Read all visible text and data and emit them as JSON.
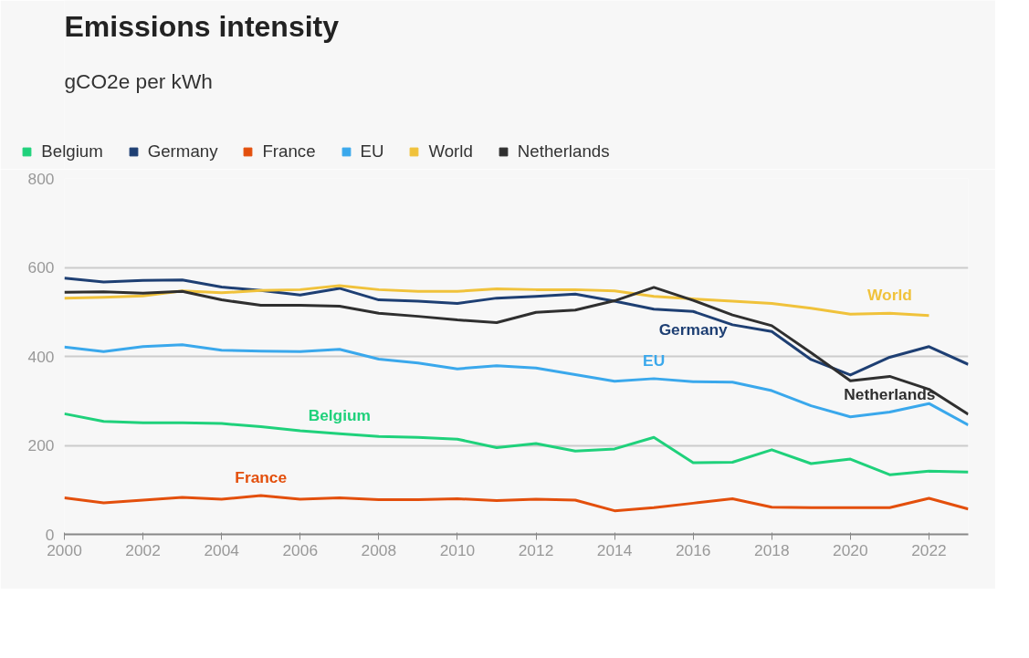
{
  "chart_data": {
    "type": "line",
    "title": "Emissions intensity",
    "subtitle": "gCO2e per kWh",
    "x": [
      2000,
      2001,
      2002,
      2003,
      2004,
      2005,
      2006,
      2007,
      2008,
      2009,
      2010,
      2011,
      2012,
      2013,
      2014,
      2015,
      2016,
      2017,
      2018,
      2019,
      2020,
      2021,
      2022,
      2023
    ],
    "series": [
      {
        "name": "Belgium",
        "color": "#1fd17b",
        "values": [
          271,
          254,
          251,
          251,
          249,
          242,
          233,
          226,
          220,
          218,
          214,
          195,
          204,
          187,
          192,
          218,
          161,
          162,
          190,
          159,
          169,
          134,
          142,
          140
        ]
      },
      {
        "name": "Germany",
        "color": "#1e3f73",
        "values": [
          576,
          567,
          571,
          572,
          556,
          548,
          538,
          553,
          527,
          524,
          519,
          531,
          535,
          540,
          524,
          506,
          501,
          471,
          456,
          393,
          358,
          398,
          422,
          382
        ]
      },
      {
        "name": "France",
        "color": "#e34f0c",
        "values": [
          82,
          71,
          77,
          83,
          79,
          87,
          79,
          82,
          78,
          78,
          80,
          76,
          79,
          77,
          53,
          60,
          70,
          80,
          61,
          60,
          60,
          60,
          81,
          57
        ]
      },
      {
        "name": "EU",
        "color": "#3aa8ec",
        "values": [
          421,
          411,
          422,
          426,
          414,
          412,
          411,
          416,
          394,
          385,
          372,
          379,
          374,
          359,
          344,
          350,
          343,
          342,
          323,
          289,
          264,
          275,
          294,
          246
        ]
      },
      {
        "name": "World",
        "color": "#f0c23b",
        "values": [
          531,
          533,
          536,
          547,
          543,
          548,
          550,
          559,
          550,
          546,
          546,
          552,
          550,
          550,
          547,
          535,
          529,
          524,
          519,
          508,
          495,
          497,
          492,
          null
        ]
      },
      {
        "name": "Netherlands",
        "color": "#2f2f2f",
        "values": [
          544,
          545,
          542,
          546,
          527,
          515,
          515,
          513,
          497,
          490,
          482,
          476,
          499,
          504,
          525,
          555,
          526,
          493,
          469,
          408,
          345,
          355,
          326,
          270
        ]
      }
    ],
    "annotations": [
      {
        "text": "Belgium",
        "x": 2007,
        "y": 226
      },
      {
        "text": "Germany",
        "x": 2016,
        "y": 501
      },
      {
        "text": "France",
        "x": 2005,
        "y": 87
      },
      {
        "text": "EU",
        "x": 2015,
        "y": 350
      },
      {
        "text": "World",
        "x": 2021,
        "y": 497
      },
      {
        "text": "Netherlands",
        "x": 2021,
        "y": 355
      }
    ],
    "xlim": [
      2000,
      2023
    ],
    "xticks": [
      2000,
      2002,
      2004,
      2006,
      2008,
      2010,
      2012,
      2014,
      2016,
      2018,
      2020,
      2022
    ],
    "ylim": [
      0,
      800
    ],
    "yticks": [
      0,
      200,
      400,
      600,
      800
    ],
    "grid": "y",
    "legend": "top left",
    "marker": "none",
    "line_style": "solid"
  }
}
